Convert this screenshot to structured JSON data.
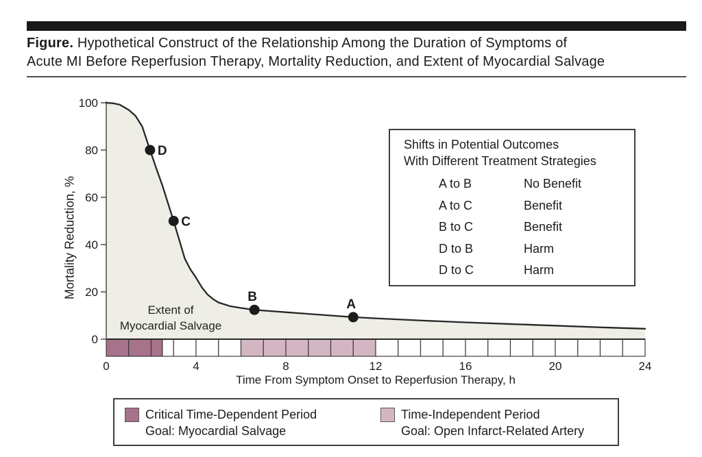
{
  "header": {
    "figure_label": "Figure.",
    "title_line1": " Hypothetical Construct of the Relationship Among the Duration of Symptoms of",
    "title_line2": "Acute MI Before Reperfusion Therapy, Mortality Reduction, and Extent of Myocardial Salvage"
  },
  "colors": {
    "critical": "#a7738a",
    "independent": "#d4b6c3",
    "area_fill": "#efeee6",
    "curve": "#262626",
    "axis": "#2a2a2a",
    "cell_border": "#3c3c3c",
    "dot": "#1c1c1c"
  },
  "chart_data": {
    "type": "line",
    "title": "Hypothetical construct: mortality reduction vs time to reperfusion",
    "xlabel": "Time From Symptom Onset to Reperfusion Therapy, h",
    "ylabel": "Mortality Reduction, %",
    "xlim": [
      0,
      24
    ],
    "ylim": [
      0,
      100
    ],
    "x_ticks": [
      0,
      4,
      8,
      12,
      16,
      20,
      24
    ],
    "y_ticks": [
      0,
      20,
      40,
      60,
      80,
      100
    ],
    "grid": "off",
    "area_label": [
      "Extent of",
      "Myocardial Salvage"
    ],
    "curve": {
      "name": "Mortality reduction",
      "x": [
        0,
        0.3,
        0.6,
        1,
        1.3,
        1.6,
        1.95,
        2.2,
        2.5,
        2.75,
        3,
        3.25,
        3.5,
        3.75,
        4,
        4.25,
        4.5,
        4.75,
        5,
        5.5,
        6,
        6.6,
        7,
        8,
        9,
        10,
        11,
        12,
        14,
        16,
        18,
        20,
        22,
        24
      ],
      "y": [
        100,
        99.8,
        99.2,
        97,
        94.5,
        90,
        80,
        73,
        65,
        57.5,
        50,
        42,
        34,
        29.5,
        26,
        22,
        19,
        17,
        15.5,
        14,
        13.2,
        12.4,
        12.1,
        11.4,
        10.7,
        10,
        9.3,
        8.8,
        7.9,
        7.1,
        6.4,
        5.7,
        5,
        4.4
      ]
    },
    "points": [
      {
        "label": "D",
        "x": 1.95,
        "y": 80
      },
      {
        "label": "C",
        "x": 3.0,
        "y": 50
      },
      {
        "label": "B",
        "x": 6.6,
        "y": 12.4
      },
      {
        "label": "A",
        "x": 11.0,
        "y": 9.3
      }
    ],
    "time_bar": {
      "cells": [
        {
          "from": 0,
          "to": 1,
          "period": "critical"
        },
        {
          "from": 1,
          "to": 2,
          "period": "critical"
        },
        {
          "from": 2,
          "to": 2.5,
          "period": "critical"
        },
        {
          "from": 2.5,
          "to": 3,
          "period": "none"
        },
        {
          "from": 3,
          "to": 4,
          "period": "none"
        },
        {
          "from": 4,
          "to": 5,
          "period": "none"
        },
        {
          "from": 5,
          "to": 6,
          "period": "none"
        },
        {
          "from": 6,
          "to": 7,
          "period": "independent"
        },
        {
          "from": 7,
          "to": 8,
          "period": "independent"
        },
        {
          "from": 8,
          "to": 9,
          "period": "independent"
        },
        {
          "from": 9,
          "to": 10,
          "period": "independent"
        },
        {
          "from": 10,
          "to": 11,
          "period": "independent"
        },
        {
          "from": 11,
          "to": 12,
          "period": "independent"
        },
        {
          "from": 12,
          "to": 13,
          "period": "none"
        },
        {
          "from": 13,
          "to": 14,
          "period": "none"
        },
        {
          "from": 14,
          "to": 15,
          "period": "none"
        },
        {
          "from": 15,
          "to": 16,
          "period": "none"
        },
        {
          "from": 16,
          "to": 17,
          "period": "none"
        },
        {
          "from": 17,
          "to": 18,
          "period": "none"
        },
        {
          "from": 18,
          "to": 19,
          "period": "none"
        },
        {
          "from": 19,
          "to": 20,
          "period": "none"
        },
        {
          "from": 20,
          "to": 21,
          "period": "none"
        },
        {
          "from": 21,
          "to": 22,
          "period": "none"
        },
        {
          "from": 22,
          "to": 23,
          "period": "none"
        },
        {
          "from": 23,
          "to": 24,
          "period": "none"
        }
      ]
    }
  },
  "outcomes_box": {
    "heading_line1": "Shifts in Potential Outcomes",
    "heading_line2": "With Different Treatment Strategies",
    "rows": [
      {
        "shift": "A to B",
        "outcome": "No Benefit"
      },
      {
        "shift": "A to C",
        "outcome": "Benefit"
      },
      {
        "shift": "B to C",
        "outcome": "Benefit"
      },
      {
        "shift": "D to B",
        "outcome": "Harm"
      },
      {
        "shift": "D to C",
        "outcome": "Harm"
      }
    ]
  },
  "period_legend": {
    "items": [
      {
        "swatch": "critical",
        "line1": "Critical Time-Dependent Period",
        "line2": "Goal: Myocardial Salvage"
      },
      {
        "swatch": "independent",
        "line1": "Time-Independent Period",
        "line2": "Goal: Open Infarct-Related Artery"
      }
    ]
  }
}
